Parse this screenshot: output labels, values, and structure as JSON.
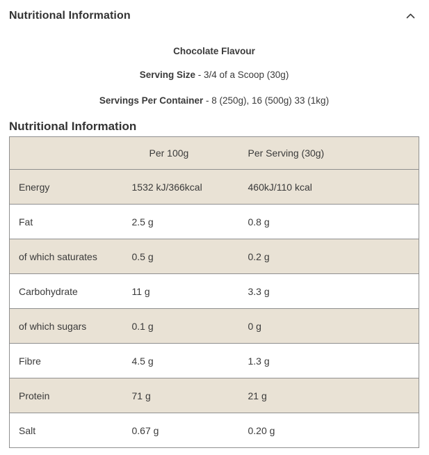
{
  "accordion": {
    "title": "Nutritional Information",
    "chevron_icon": "chevron-up"
  },
  "intro": {
    "flavour": "Chocolate Flavour",
    "serving_size_label": "Serving Size",
    "serving_size_value": " - 3/4 of a Scoop (30g)",
    "servings_label": "Servings Per Container",
    "servings_value": " - 8 (250g), 16 (500g) 33 (1kg)"
  },
  "section_title": "Nutritional Information",
  "table": {
    "columns": [
      "",
      "Per 100g",
      "Per Serving (30g)"
    ],
    "rows": [
      {
        "label": "Energy",
        "per100": "1532 kJ/366kcal",
        "perServing": "460kJ/110 kcal"
      },
      {
        "label": "Fat",
        "per100": "2.5 g",
        "perServing": "0.8 g"
      },
      {
        "label": "of which saturates",
        "per100": "0.5 g",
        "perServing": "0.2 g"
      },
      {
        "label": "Carbohydrate",
        "per100": "11 g",
        "perServing": "3.3 g"
      },
      {
        "label": "of which sugars",
        "per100": "0.1 g",
        "perServing": "0 g"
      },
      {
        "label": "Fibre",
        "per100": "4.5 g",
        "perServing": "1.3 g"
      },
      {
        "label": "Protein",
        "per100": "71 g",
        "perServing": "21 g"
      },
      {
        "label": "Salt",
        "per100": "0.67 g",
        "perServing": "0.20 g"
      }
    ]
  },
  "colors": {
    "stripe": "#e9e2d5",
    "table_border": "#8f8f8f",
    "text": "#3a3a3a"
  }
}
